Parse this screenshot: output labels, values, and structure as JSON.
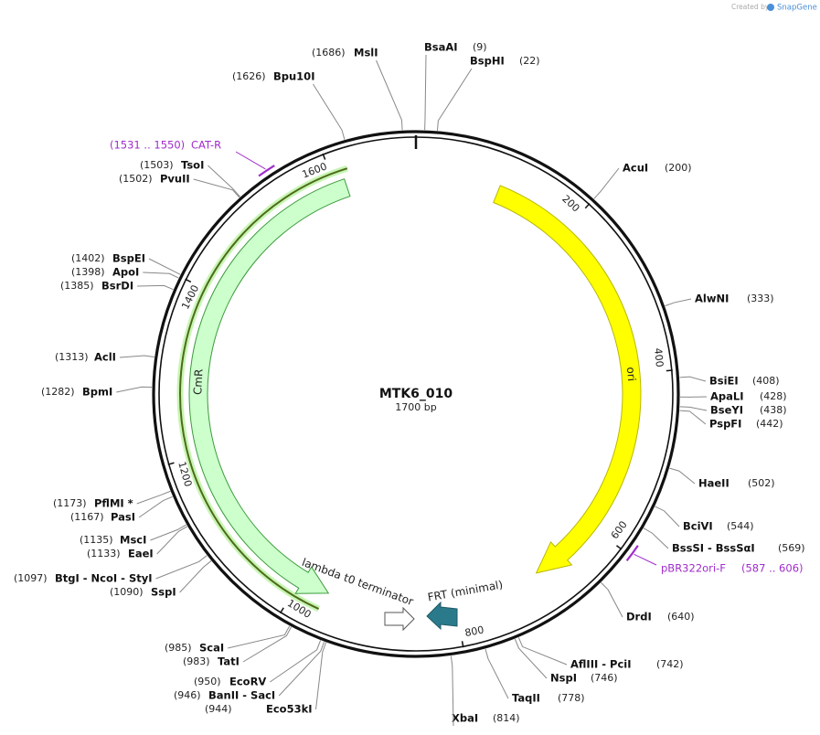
{
  "credit": {
    "prefix": "Created by",
    "brand": "SnapGene"
  },
  "map": {
    "name": "MTK6_010",
    "length": "1700 bp",
    "ticks": [
      200,
      400,
      600,
      800,
      1000,
      1200,
      1400,
      1600
    ]
  },
  "sites": [
    {
      "name": "MslI",
      "position": "(1686)"
    },
    {
      "name": "BsaAI",
      "position": "(9)"
    },
    {
      "name": "BspHI",
      "position": "(22)"
    },
    {
      "name": "Bpu10I",
      "position": "(1626)"
    },
    {
      "name": "AcuI",
      "position": "(200)"
    },
    {
      "name": "TsoI",
      "position": "(1503)"
    },
    {
      "name": "PvuII",
      "position": "(1502)"
    },
    {
      "name": "BspEI",
      "position": "(1402)"
    },
    {
      "name": "ApoI",
      "position": "(1398)"
    },
    {
      "name": "BsrDI",
      "position": "(1385)"
    },
    {
      "name": "AlwNI",
      "position": "(333)"
    },
    {
      "name": "AclI",
      "position": "(1313)"
    },
    {
      "name": "BsiEI",
      "position": "(408)"
    },
    {
      "name": "ApaLI",
      "position": "(428)"
    },
    {
      "name": "BpmI",
      "position": "(1282)"
    },
    {
      "name": "BseYI",
      "position": "(438)"
    },
    {
      "name": "PspFI",
      "position": "(442)"
    },
    {
      "name": "HaeII",
      "position": "(502)"
    },
    {
      "name": "PflMI *",
      "position": "(1173)"
    },
    {
      "name": "PasI",
      "position": "(1167)"
    },
    {
      "name": "BciVI",
      "position": "(544)"
    },
    {
      "name": "BssSI - BssSαI",
      "position": "(569)"
    },
    {
      "name": "MscI",
      "position": "(1135)"
    },
    {
      "name": "EaeI",
      "position": "(1133)"
    },
    {
      "name": "BtgI - NcoI - StyI",
      "position": "(1097)"
    },
    {
      "name": "SspI",
      "position": "(1090)"
    },
    {
      "name": "DrdI",
      "position": "(640)"
    },
    {
      "name": "ScaI",
      "position": "(985)"
    },
    {
      "name": "TatI",
      "position": "(983)"
    },
    {
      "name": "AflIII - PciI",
      "position": "(742)"
    },
    {
      "name": "NspI",
      "position": "(746)"
    },
    {
      "name": "EcoRV",
      "position": "(950)"
    },
    {
      "name": "BanII - SacI",
      "position": "(946)"
    },
    {
      "name": "Eco53kI",
      "position": "(944)"
    },
    {
      "name": "TaqII",
      "position": "(778)"
    },
    {
      "name": "XbaI",
      "position": "(814)"
    }
  ],
  "features": [
    {
      "name": "ori"
    },
    {
      "name": "CmR"
    },
    {
      "name": "lambda t0 terminator"
    },
    {
      "name": "FRT (minimal)"
    }
  ],
  "primers": [
    {
      "name": "CAT-R",
      "range": "(1531 .. 1550)"
    },
    {
      "name": "pBR322ori-F",
      "range": "(587 .. 606)"
    }
  ]
}
